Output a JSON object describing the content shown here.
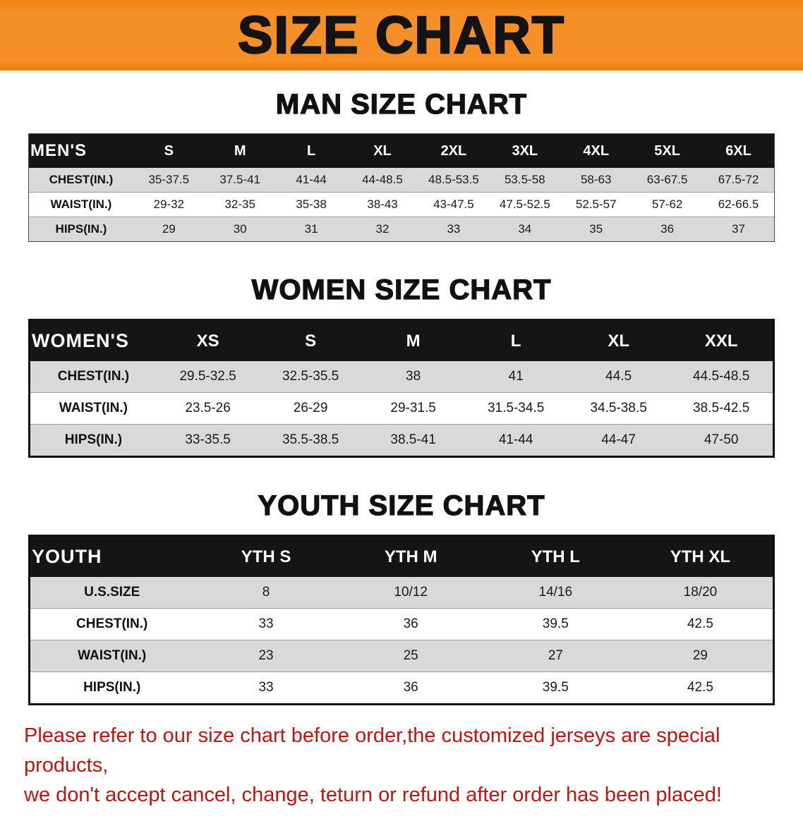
{
  "banner": {
    "title": "SIZE CHART",
    "bg_color": "#F78F28",
    "text_color": "#141414"
  },
  "sections": [
    {
      "id": "men",
      "heading": "MAN SIZE CHART",
      "table": {
        "header": [
          "MEN'S",
          "S",
          "M",
          "L",
          "XL",
          "2XL",
          "3XL",
          "4XL",
          "5XL",
          "6XL"
        ],
        "rows": [
          {
            "label": "CHEST(IN.)",
            "values": [
              "35-37.5",
              "37.5-41",
              "41-44",
              "44-48.5",
              "48.5-53.5",
              "53.5-58",
              "58-63",
              "63-67.5",
              "67.5-72"
            ]
          },
          {
            "label": "WAIST(IN.)",
            "values": [
              "29-32",
              "32-35",
              "35-38",
              "38-43",
              "43-47.5",
              "47.5-52.5",
              "52.5-57",
              "57-62",
              "62-66.5"
            ]
          },
          {
            "label": "HIPS(IN.)",
            "values": [
              "29",
              "30",
              "31",
              "32",
              "33",
              "34",
              "35",
              "36",
              "37"
            ]
          }
        ]
      }
    },
    {
      "id": "women",
      "heading": "WOMEN SIZE CHART",
      "table": {
        "header": [
          "WOMEN'S",
          "XS",
          "S",
          "M",
          "L",
          "XL",
          "XXL"
        ],
        "rows": [
          {
            "label": "CHEST(IN.)",
            "values": [
              "29.5-32.5",
              "32.5-35.5",
              "38",
              "41",
              "44.5",
              "44.5-48.5"
            ]
          },
          {
            "label": "WAIST(IN.)",
            "values": [
              "23.5-26",
              "26-29",
              "29-31.5",
              "31.5-34.5",
              "34.5-38.5",
              "38.5-42.5"
            ]
          },
          {
            "label": "HIPS(IN.)",
            "values": [
              "33-35.5",
              "35.5-38.5",
              "38.5-41",
              "41-44",
              "44-47",
              "47-50"
            ]
          }
        ]
      }
    },
    {
      "id": "youth",
      "heading": "YOUTH SIZE CHART",
      "table": {
        "header": [
          "YOUTH",
          "YTH S",
          "YTH M",
          "YTH L",
          "YTH XL"
        ],
        "rows": [
          {
            "label": "U.S.SIZE",
            "values": [
              "8",
              "10/12",
              "14/16",
              "18/20"
            ]
          },
          {
            "label": "CHEST(IN.)",
            "values": [
              "33",
              "36",
              "39.5",
              "42.5"
            ]
          },
          {
            "label": "WAIST(IN.)",
            "values": [
              "23",
              "25",
              "27",
              "29"
            ]
          },
          {
            "label": "HIPS(IN.)",
            "values": [
              "33",
              "36",
              "39.5",
              "42.5"
            ]
          }
        ]
      }
    }
  ],
  "footer": {
    "line1": "Please refer to our size chart before order,the customized jerseys are special products,",
    "line2": "we don't accept cancel, change, teturn or refund after order has been placed!",
    "text_color": "#C21212"
  }
}
